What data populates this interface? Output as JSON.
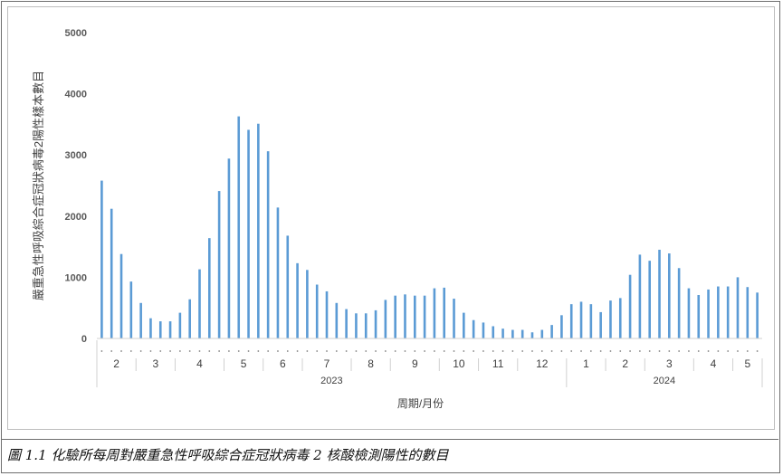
{
  "caption": "圖 1.1 化驗所每周對嚴重急性呼吸綜合症冠狀病毒 2 核酸檢測陽性的數目",
  "chart_data": {
    "type": "bar",
    "title": "",
    "ylabel": "嚴重急性呼吸綜合症冠狀病毒2陽性樣本數目",
    "xlabel": "周期/月份",
    "ylim": [
      0,
      5000
    ],
    "yticks": [
      0,
      1000,
      2000,
      3000,
      4000,
      5000
    ],
    "grid": false,
    "bar_color": "#5b9bd5",
    "values": [
      2580,
      2120,
      1380,
      930,
      580,
      330,
      280,
      280,
      420,
      640,
      1130,
      1640,
      2410,
      2940,
      3630,
      3410,
      3510,
      3060,
      2140,
      1680,
      1230,
      1120,
      880,
      770,
      580,
      480,
      410,
      410,
      460,
      630,
      700,
      720,
      700,
      700,
      820,
      830,
      650,
      420,
      300,
      260,
      200,
      160,
      140,
      140,
      100,
      140,
      220,
      380,
      560,
      600,
      560,
      430,
      620,
      660,
      1040,
      1370,
      1270,
      1450,
      1390,
      1150,
      820,
      710,
      800,
      850,
      850,
      1000,
      840,
      750
    ],
    "months": [
      {
        "label": "2",
        "start": 0,
        "end": 4
      },
      {
        "label": "3",
        "start": 4,
        "end": 8
      },
      {
        "label": "4",
        "start": 8,
        "end": 13
      },
      {
        "label": "5",
        "start": 13,
        "end": 17
      },
      {
        "label": "6",
        "start": 17,
        "end": 21
      },
      {
        "label": "7",
        "start": 21,
        "end": 26
      },
      {
        "label": "8",
        "start": 26,
        "end": 30
      },
      {
        "label": "9",
        "start": 30,
        "end": 35
      },
      {
        "label": "10",
        "start": 35,
        "end": 39
      },
      {
        "label": "11",
        "start": 39,
        "end": 43
      },
      {
        "label": "12",
        "start": 43,
        "end": 48
      },
      {
        "label": "1",
        "start": 48,
        "end": 52
      },
      {
        "label": "2",
        "start": 52,
        "end": 56
      },
      {
        "label": "3",
        "start": 56,
        "end": 61
      },
      {
        "label": "4",
        "start": 61,
        "end": 65
      },
      {
        "label": "5",
        "start": 65,
        "end": 68
      }
    ],
    "years": [
      {
        "label": "2023",
        "start": 0,
        "end": 48
      },
      {
        "label": "2024",
        "start": 48,
        "end": 68
      }
    ]
  }
}
